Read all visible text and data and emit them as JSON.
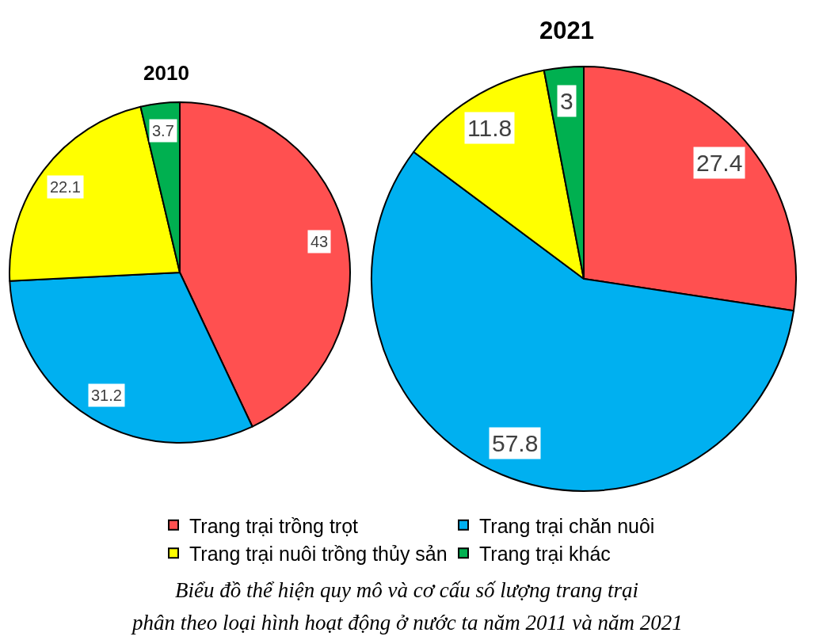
{
  "chart_data": {
    "type": "pie",
    "categories": [
      "Trang trại trồng trọt",
      "Trang trại chăn nuôi",
      "Trang trại nuôi trồng thủy sản",
      "Trang trại khác"
    ],
    "colors": [
      "#ff5050",
      "#00b0f0",
      "#ffff00",
      "#00b050"
    ],
    "series": [
      {
        "name": "2010",
        "values": [
          43,
          31.2,
          22.1,
          3.7
        ]
      },
      {
        "name": "2021",
        "values": [
          27.4,
          57.8,
          11.8,
          3
        ]
      }
    ],
    "data_labels": true,
    "legend": "bottom",
    "annotations": [
      "Biểu đồ thể hiện quy mô và cơ cấu số lượng trang trại\nphân theo loại hình hoạt động ở nước ta năm 2011 và năm 2021"
    ]
  }
}
